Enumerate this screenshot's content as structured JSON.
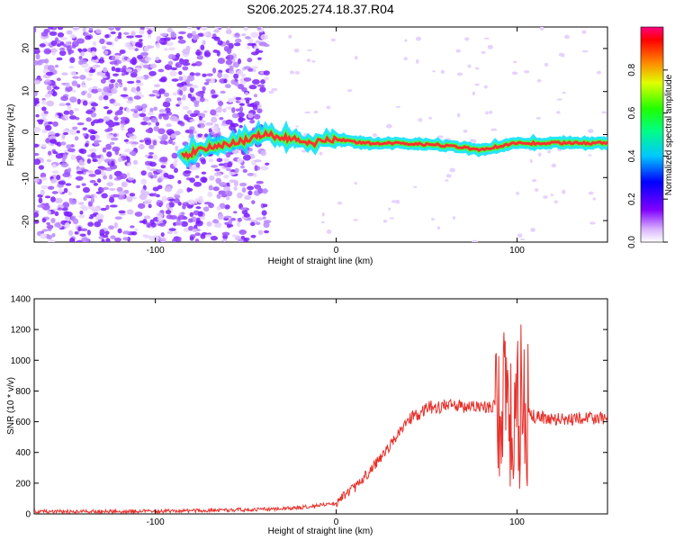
{
  "title": "S206.2025.274.18.37.R04",
  "chart_data": [
    {
      "type": "heatmap",
      "xlabel": "Height of straight line (km)",
      "ylabel": "Frequency (Hz)",
      "xlim": [
        -167,
        150
      ],
      "ylim": [
        -25,
        25
      ],
      "x_ticks": [
        -100,
        0,
        100
      ],
      "y_ticks": [
        -20,
        -10,
        0,
        10,
        20
      ],
      "colorbar": {
        "label": "Normalized spectral amplitude",
        "range": [
          0,
          1
        ],
        "ticks": [
          "0.0",
          "0.2",
          "0.4",
          "0.6",
          "0.8"
        ]
      },
      "signal_track": [
        {
          "x": -85,
          "y": -5
        },
        {
          "x": -70,
          "y": -3
        },
        {
          "x": -55,
          "y": -2
        },
        {
          "x": -40,
          "y": 0
        },
        {
          "x": -25,
          "y": -1
        },
        {
          "x": -12,
          "y": -2
        },
        {
          "x": 0,
          "y": -1
        },
        {
          "x": 15,
          "y": -2
        },
        {
          "x": 30,
          "y": -2
        },
        {
          "x": 60,
          "y": -2.5
        },
        {
          "x": 80,
          "y": -3.5
        },
        {
          "x": 100,
          "y": -2
        },
        {
          "x": 150,
          "y": -2
        }
      ]
    },
    {
      "type": "line",
      "xlabel": "Height of straight line (km)",
      "ylabel": "SNR (10 * v/v)",
      "xlim": [
        -167,
        150
      ],
      "ylim": [
        0,
        1400
      ],
      "x_ticks": [
        -100,
        0,
        100
      ],
      "y_ticks": [
        0,
        200,
        400,
        600,
        800,
        1000,
        1200,
        1400
      ],
      "series": [
        {
          "name": "SNR",
          "color": "#e8302a",
          "x": [
            -167,
            -120,
            -80,
            -40,
            -20,
            0,
            10,
            20,
            30,
            40,
            50,
            60,
            70,
            80,
            85,
            90,
            95,
            100,
            105,
            110,
            120,
            150
          ],
          "y": [
            15,
            15,
            20,
            30,
            40,
            70,
            170,
            300,
            450,
            610,
            690,
            700,
            700,
            700,
            700,
            720,
            730,
            700,
            690,
            630,
            620,
            620
          ]
        }
      ]
    }
  ]
}
